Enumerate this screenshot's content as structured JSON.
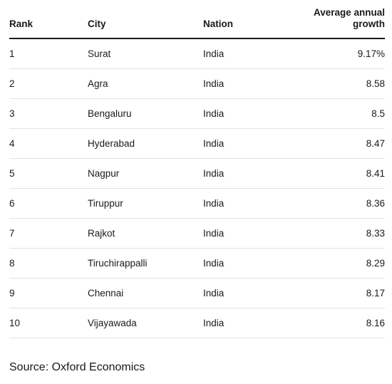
{
  "table": {
    "headers": {
      "rank": "Rank",
      "city": "City",
      "nation": "Nation",
      "growth_line1": "Average annual",
      "growth_line2": "growth"
    },
    "rows": [
      {
        "rank": "1",
        "city": "Surat",
        "nation": "India",
        "growth": "9.17%"
      },
      {
        "rank": "2",
        "city": "Agra",
        "nation": "India",
        "growth": "8.58"
      },
      {
        "rank": "3",
        "city": "Bengaluru",
        "nation": "India",
        "growth": "8.5"
      },
      {
        "rank": "4",
        "city": "Hyderabad",
        "nation": "India",
        "growth": "8.47"
      },
      {
        "rank": "5",
        "city": "Nagpur",
        "nation": "India",
        "growth": "8.41"
      },
      {
        "rank": "6",
        "city": "Tiruppur",
        "nation": "India",
        "growth": "8.36"
      },
      {
        "rank": "7",
        "city": "Rajkot",
        "nation": "India",
        "growth": "8.33"
      },
      {
        "rank": "8",
        "city": "Tiruchirappalli",
        "nation": "India",
        "growth": "8.29"
      },
      {
        "rank": "9",
        "city": "Chennai",
        "nation": "India",
        "growth": "8.17"
      },
      {
        "rank": "10",
        "city": "Vijayawada",
        "nation": "India",
        "growth": "8.16"
      }
    ]
  },
  "source": "Source: Oxford Economics"
}
